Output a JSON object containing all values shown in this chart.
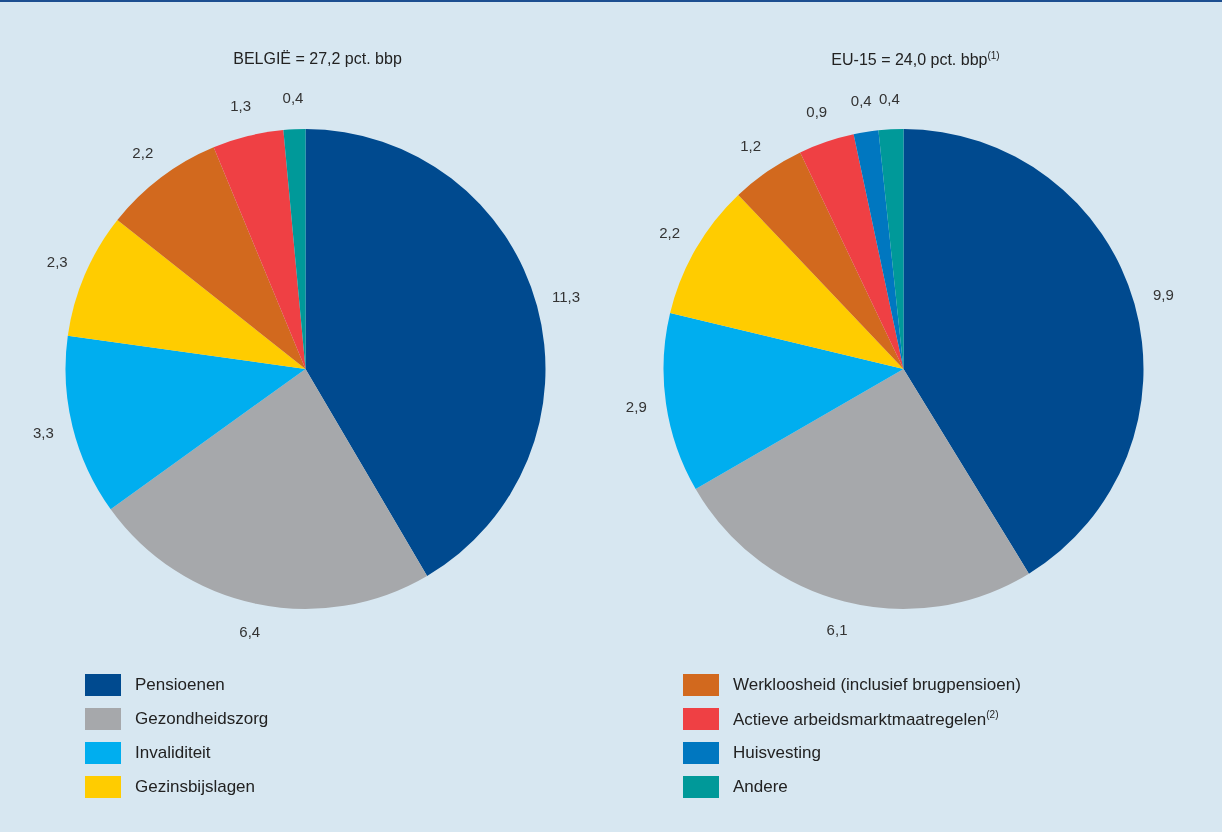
{
  "chart_data": {
    "type": "pie",
    "categories": [
      "Pensioenen",
      "Gezondheidszorg",
      "Invaliditeit",
      "Gezinsbijslagen",
      "Werkloosheid (inclusief brugpensioen)",
      "Actieve arbeidsmarktmaatregelen$^{(2)}$",
      "Huisvesting",
      "Andere"
    ],
    "colors": [
      "#004a8f",
      "#a6a8ab",
      "#00aeef",
      "#ffcc00",
      "#d2691e",
      "#ef4044",
      "#0077c0",
      "#009999"
    ],
    "series": [
      {
        "name": "BELGIË = 27,2 pct. bbp",
        "values": [
          11.3,
          6.4,
          3.3,
          2.3,
          2.2,
          1.3,
          null,
          0.4
        ],
        "value_labels": [
          "11,3",
          "6,4",
          "3,3",
          "2,3",
          "2,2",
          "1,3",
          null,
          "0,4"
        ]
      },
      {
        "name": "EU-15 = 24,0 pct. bbp$^{(1)}$",
        "values": [
          9.9,
          6.1,
          2.9,
          2.2,
          1.2,
          0.9,
          0.4,
          0.4
        ],
        "value_labels": [
          "9,9",
          "6,1",
          "2,9",
          "2,2",
          "1,2",
          "0,9",
          "0,4",
          "0,4"
        ]
      }
    ],
    "legend": "bottom"
  }
}
